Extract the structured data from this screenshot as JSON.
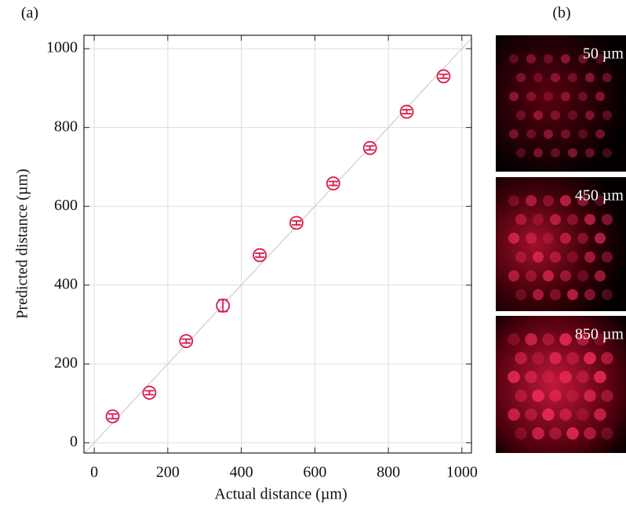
{
  "chart_data": {
    "type": "scatter",
    "xlabel": "Actual distance (µm)",
    "ylabel": "Predicted distance (µm)",
    "x": [
      50,
      150,
      250,
      350,
      450,
      550,
      650,
      750,
      850,
      950
    ],
    "series": [
      {
        "color": "#d81b4a",
        "values": [
          67,
          127,
          258,
          348,
          476,
          558,
          658,
          748,
          840,
          930
        ],
        "errors": [
          6,
          5,
          5,
          15,
          5,
          5,
          5,
          5,
          5,
          5
        ]
      }
    ],
    "xlim": [
      -28,
      1026
    ],
    "ylim": [
      -26,
      1034
    ],
    "xticks": [
      0,
      200,
      400,
      600,
      800,
      1000
    ],
    "yticks": [
      0,
      200,
      400,
      600,
      800,
      1000
    ],
    "grid": true
  },
  "panels": {
    "a_label": "(a)",
    "b_label": "(b)",
    "images": [
      {
        "label": "50 µm"
      },
      {
        "label": "450 µm"
      },
      {
        "label": "850 µm"
      }
    ]
  }
}
